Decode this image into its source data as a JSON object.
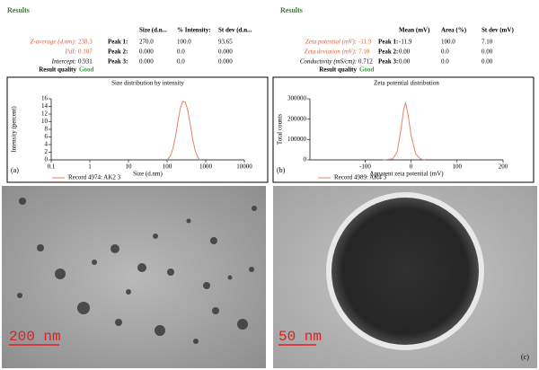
{
  "left": {
    "title": "Results",
    "fields": [
      {
        "label": "Z-average (d.nm):",
        "value": "238.3",
        "color": "#e0603a"
      },
      {
        "label": "PdI:",
        "value": "0.107",
        "color": "#e0603a"
      },
      {
        "label": "Intercept:",
        "value": "0.931",
        "color": "#000000"
      }
    ],
    "quality_label": "Result quality",
    "quality": "Good",
    "table": {
      "headers": [
        "Size (d.n...",
        "% Intensity:",
        "St dev (d.n..."
      ],
      "rows": [
        [
          "Peak 1:",
          "270.0",
          "100.0",
          "93.65"
        ],
        [
          "Peak 2:",
          "0.000",
          "0.0",
          "0.000"
        ],
        [
          "Peak 3:",
          "0.000",
          "0.0",
          "0.000"
        ]
      ]
    }
  },
  "right": {
    "title": "Results",
    "fields": [
      {
        "label": "Zeta potential (mV):",
        "value": "-11.9",
        "color": "#e0603a"
      },
      {
        "label": "Zeta deviation (mV):",
        "value": "7.10",
        "color": "#e0603a"
      },
      {
        "label": "Conductivity (mS/cm):",
        "value": "0.712",
        "color": "#000000"
      }
    ],
    "quality_label": "Result quality",
    "quality": "Good",
    "table": {
      "headers": [
        "Mean (mV)",
        "Area (%)",
        "St dev (mV)"
      ],
      "rows": [
        [
          "Peak 1:",
          "-11.9",
          "100.0",
          "7.10"
        ],
        [
          "Peak 2:",
          "0.00",
          "0.0",
          "0.00"
        ],
        [
          "Peak 3:",
          "0.00",
          "0.0",
          "0.00"
        ]
      ]
    }
  },
  "chart_data": [
    {
      "type": "line",
      "title": "Size distribution by intensity",
      "xlabel": "Size (d.nm)",
      "ylabel": "Intensity (percent)",
      "panel_label": "(a)",
      "xscale": "log",
      "xlim": [
        0.1,
        10000
      ],
      "xticks": [
        0.1,
        1,
        10,
        100,
        1000,
        10000
      ],
      "ylim": [
        0,
        16
      ],
      "yticks": [
        0,
        2,
        4,
        6,
        8,
        10,
        12,
        14,
        16
      ],
      "x": [
        100,
        122,
        142,
        164,
        190,
        220,
        255,
        295,
        342,
        396,
        459,
        531,
        615,
        712
      ],
      "series": [
        {
          "name": "Record 4974: AK2 3",
          "color": "#e8826a",
          "values": [
            0,
            1,
            3,
            6,
            10,
            13.5,
            15.3,
            15.2,
            13,
            9.5,
            5.5,
            2.5,
            0.8,
            0
          ]
        }
      ]
    },
    {
      "type": "line",
      "title": "Zeta potential distribution",
      "xlabel": "Apparent zeta potential (mV)",
      "ylabel": "Total counts",
      "panel_label": "(b)",
      "xscale": "linear",
      "xlim": [
        -220,
        200
      ],
      "xticks": [
        -100,
        0,
        100,
        200
      ],
      "ylim": [
        0,
        300000
      ],
      "yticks": [
        0,
        100000,
        200000,
        300000
      ],
      "x": [
        -60,
        -40,
        -30,
        -22,
        -16,
        -12,
        -8,
        0,
        10,
        20,
        30
      ],
      "series": [
        {
          "name": "Record 4989: AK4 3",
          "color": "#e8826a",
          "values": [
            0,
            5000,
            40000,
            150000,
            250000,
            280000,
            240000,
            120000,
            30000,
            5000,
            0
          ]
        }
      ]
    }
  ],
  "images": [
    {
      "scale_bar": "200 nm"
    },
    {
      "scale_bar": "50 nm",
      "label": "(c)"
    }
  ]
}
